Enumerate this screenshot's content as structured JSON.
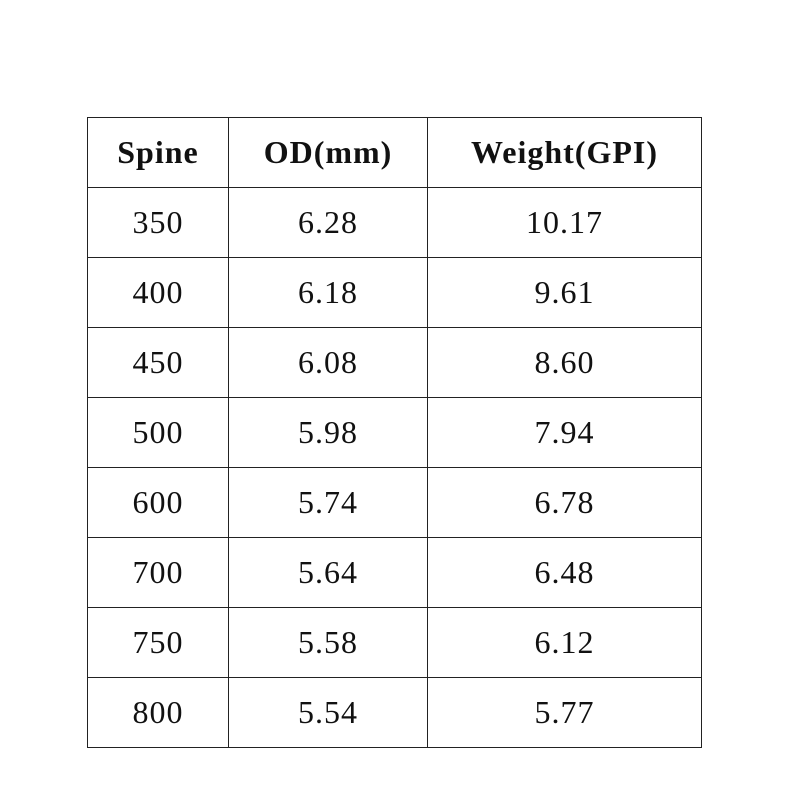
{
  "table": {
    "columns": [
      "Spine",
      "OD(mm)",
      "Weight(GPI)"
    ],
    "rows": [
      [
        "350",
        "6.28",
        "10.17"
      ],
      [
        "400",
        "6.18",
        "9.61"
      ],
      [
        "450",
        "6.08",
        "8.60"
      ],
      [
        "500",
        "5.98",
        "7.94"
      ],
      [
        "600",
        "5.74",
        "6.78"
      ],
      [
        "700",
        "5.64",
        "6.48"
      ],
      [
        "750",
        "5.58",
        "6.12"
      ],
      [
        "800",
        "5.54",
        "5.77"
      ]
    ]
  }
}
